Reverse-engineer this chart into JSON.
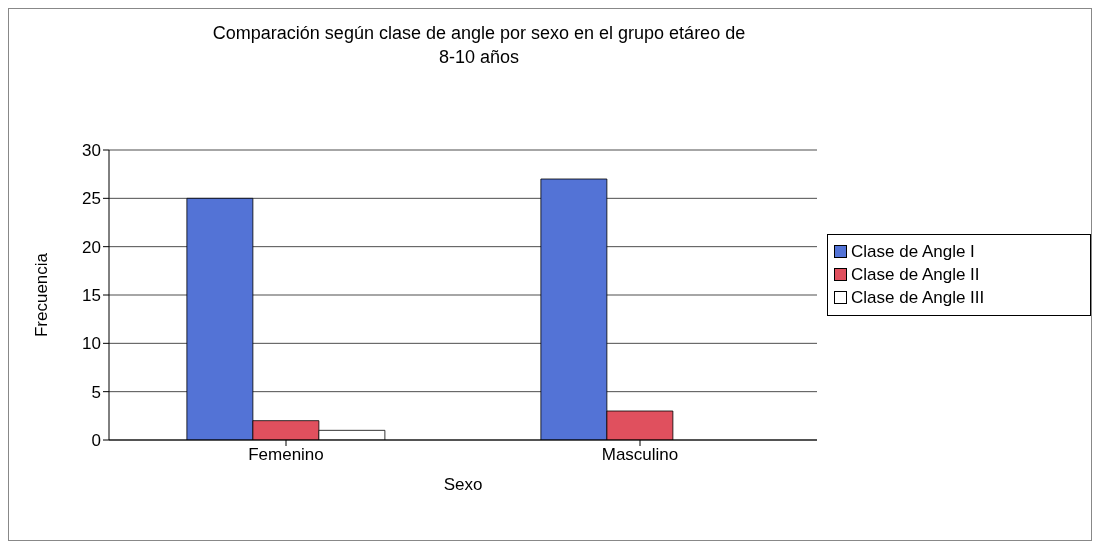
{
  "chart_data": {
    "type": "bar",
    "title": "Comparación según clase de angle por sexo en el grupo etáreo de 8-10 años",
    "xlabel": "Sexo",
    "ylabel": "Frecuencia",
    "categories": [
      "Femenino",
      "Masculino"
    ],
    "series": [
      {
        "name": "Clase de Angle I",
        "color": "#5373d6",
        "values": [
          25,
          27
        ]
      },
      {
        "name": "Clase de Angle II",
        "color": "#e0505e",
        "values": [
          2,
          3
        ]
      },
      {
        "name": "Clase de Angle III",
        "color": "#ffffff",
        "values": [
          1,
          0
        ]
      }
    ],
    "ylim": [
      0,
      30
    ],
    "yticks": [
      0,
      5,
      10,
      15,
      20,
      25,
      30
    ],
    "grid": "y",
    "legend": "right"
  }
}
